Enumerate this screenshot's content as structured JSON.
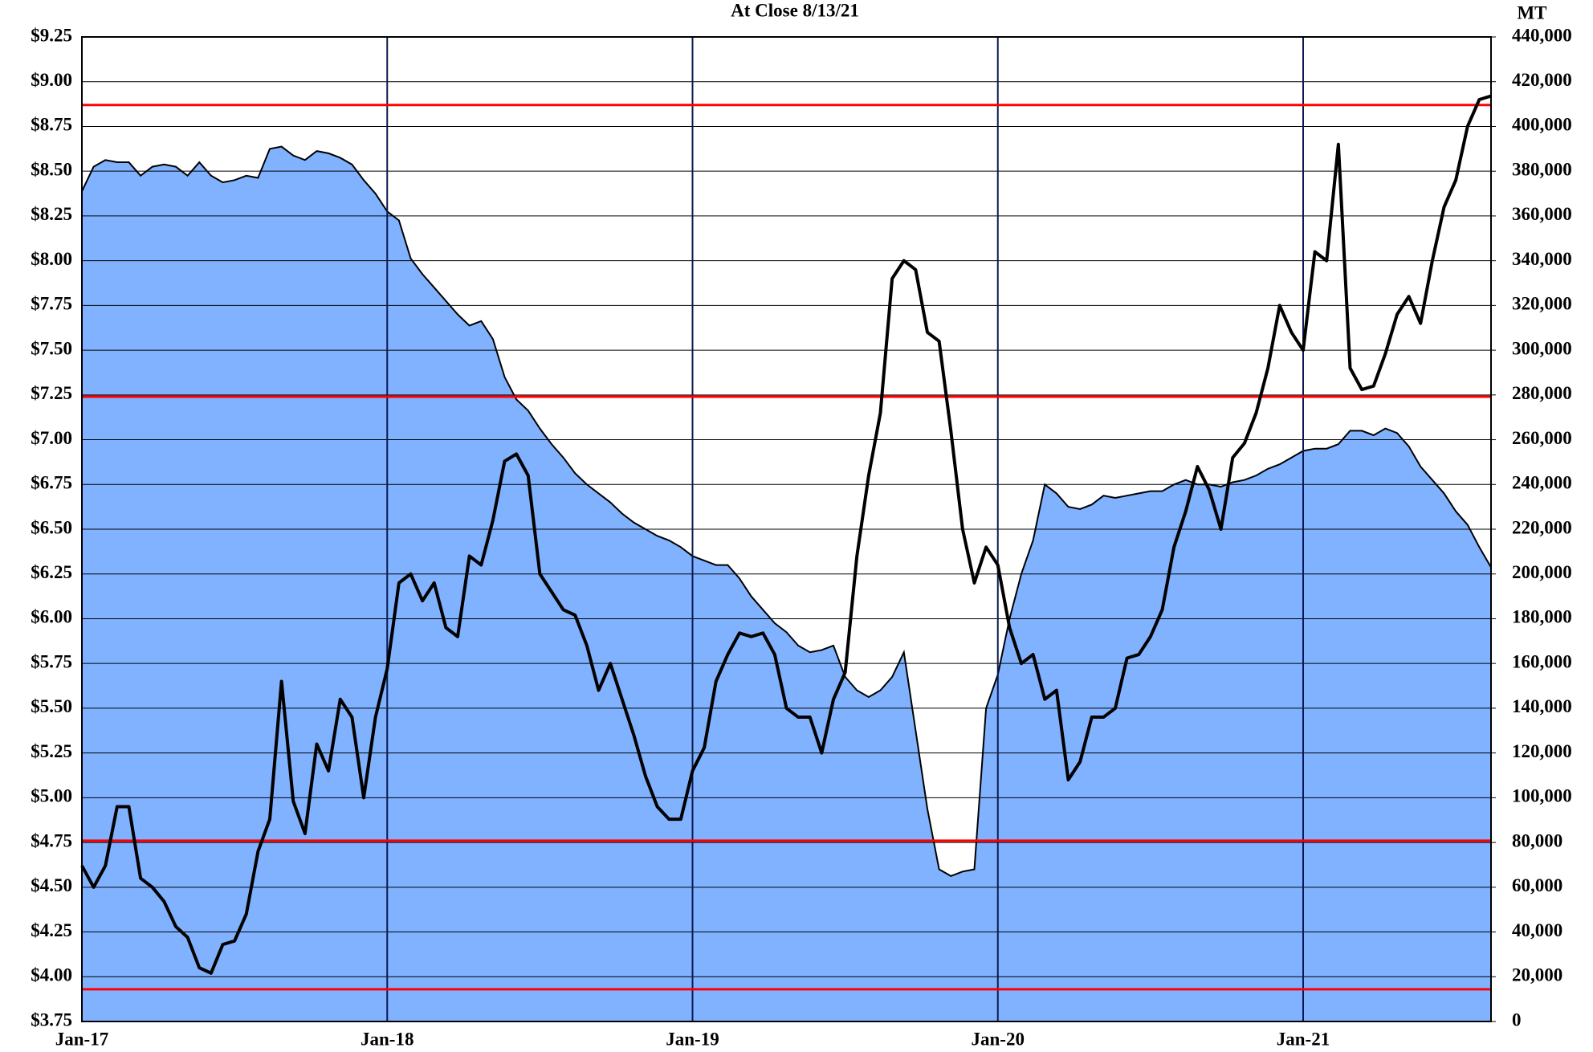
{
  "chart_data": {
    "type": "line",
    "title": "At Close 8/13/21",
    "y2_label": "MT",
    "categories": [
      "Jan-17",
      null,
      null,
      null,
      null,
      null,
      null,
      null,
      null,
      null,
      null,
      null,
      null,
      null,
      null,
      null,
      null,
      null,
      null,
      null,
      null,
      null,
      null,
      null,
      null,
      null,
      "Jan-18",
      null,
      null,
      null,
      null,
      null,
      null,
      null,
      null,
      null,
      null,
      null,
      null,
      null,
      null,
      null,
      null,
      null,
      null,
      null,
      null,
      null,
      null,
      null,
      null,
      null,
      "Jan-19",
      null,
      null,
      null,
      null,
      null,
      null,
      null,
      null,
      null,
      null,
      null,
      null,
      null,
      null,
      null,
      null,
      null,
      null,
      null,
      null,
      null,
      null,
      null,
      null,
      null,
      "Jan-20",
      null,
      null,
      null,
      null,
      null,
      null,
      null,
      null,
      null,
      null,
      null,
      null,
      null,
      null,
      null,
      null,
      null,
      null,
      null,
      null,
      null,
      null,
      null,
      null,
      null,
      "Jan-21",
      null,
      null,
      null,
      null,
      null,
      null,
      null,
      null,
      null,
      null,
      null,
      null,
      null,
      null,
      null,
      null
    ],
    "series": [
      {
        "type": "area",
        "axis": "y2",
        "color": "#80b2ff",
        "values": [
          371000,
          382000,
          385000,
          384000,
          384000,
          378000,
          382000,
          383000,
          382000,
          378000,
          384000,
          378000,
          375000,
          376000,
          378000,
          377000,
          390000,
          391000,
          387000,
          385000,
          389000,
          388000,
          386000,
          383000,
          376000,
          370000,
          362000,
          358000,
          341000,
          334000,
          328000,
          322000,
          316000,
          311000,
          313000,
          305000,
          288000,
          278000,
          273000,
          265000,
          258000,
          252000,
          245000,
          240000,
          236000,
          232000,
          227000,
          223000,
          220000,
          217000,
          215000,
          212000,
          208000,
          206000,
          204000,
          204000,
          198000,
          190000,
          184000,
          178000,
          174000,
          168000,
          165000,
          166000,
          168000,
          154000,
          148000,
          145000,
          148000,
          154000,
          165000,
          130000,
          95000,
          68000,
          65000,
          67000,
          68000,
          140000,
          155000,
          180000,
          200000,
          215000,
          240000,
          236000,
          230000,
          229000,
          231000,
          235000,
          234000,
          235000,
          236000,
          237000,
          237000,
          240000,
          242000,
          240000,
          240000,
          239000,
          241000,
          242000,
          244000,
          247000,
          249000,
          252000,
          255000,
          256000,
          256000,
          258000,
          264000,
          264000,
          262000,
          265000,
          263000,
          257000,
          248000,
          242000,
          236000,
          228000,
          222000,
          212000,
          203000
        ]
      },
      {
        "type": "line",
        "axis": "y",
        "color": "#000000",
        "values": [
          4.62,
          4.5,
          4.62,
          4.95,
          4.95,
          4.55,
          4.5,
          4.42,
          4.28,
          4.22,
          4.05,
          4.02,
          4.18,
          4.2,
          4.35,
          4.7,
          4.88,
          5.65,
          4.98,
          4.8,
          5.3,
          5.15,
          5.55,
          5.45,
          5.0,
          5.45,
          5.72,
          6.2,
          6.25,
          6.1,
          6.2,
          5.95,
          5.9,
          6.35,
          6.3,
          6.55,
          6.88,
          6.92,
          6.8,
          6.25,
          6.15,
          6.05,
          6.02,
          5.85,
          5.6,
          5.75,
          5.55,
          5.35,
          5.12,
          4.95,
          4.88,
          4.88,
          5.15,
          5.28,
          5.65,
          5.8,
          5.92,
          5.9,
          5.92,
          5.8,
          5.5,
          5.45,
          5.45,
          5.25,
          5.55,
          5.7,
          6.35,
          6.8,
          7.15,
          7.9,
          8.0,
          7.95,
          7.6,
          7.55,
          7.05,
          6.5,
          6.2,
          6.4,
          6.3,
          5.95,
          5.75,
          5.8,
          5.55,
          5.6,
          5.1,
          5.2,
          5.45,
          5.45,
          5.5,
          5.78,
          5.8,
          5.9,
          6.05,
          6.4,
          6.6,
          6.85,
          6.72,
          6.5,
          6.9,
          6.98,
          7.15,
          7.4,
          7.75,
          7.6,
          7.5,
          8.05,
          8.0,
          8.65,
          7.4,
          7.28,
          7.3,
          7.48,
          7.7,
          7.8,
          7.65,
          8.0,
          8.3,
          8.45,
          8.75,
          8.9,
          8.92
        ]
      }
    ],
    "reference_lines": [
      {
        "value": 8.87,
        "color": "#ff0000"
      },
      {
        "value": 7.24,
        "color": "#ff0000"
      },
      {
        "value": 4.76,
        "color": "#ff0000"
      },
      {
        "value": 3.93,
        "color": "#ff0000"
      }
    ],
    "ylim": [
      3.75,
      9.25
    ],
    "yticks": [
      {
        "value": 3.75,
        "label": "$3.75"
      },
      {
        "value": 4.0,
        "label": "$4.00"
      },
      {
        "value": 4.25,
        "label": "$4.25"
      },
      {
        "value": 4.5,
        "label": "$4.50"
      },
      {
        "value": 4.75,
        "label": "$4.75"
      },
      {
        "value": 5.0,
        "label": "$5.00"
      },
      {
        "value": 5.25,
        "label": "$5.25"
      },
      {
        "value": 5.5,
        "label": "$5.50"
      },
      {
        "value": 5.75,
        "label": "$5.75"
      },
      {
        "value": 6.0,
        "label": "$6.00"
      },
      {
        "value": 6.25,
        "label": "$6.25"
      },
      {
        "value": 6.5,
        "label": "$6.50"
      },
      {
        "value": 6.75,
        "label": "$6.75"
      },
      {
        "value": 7.0,
        "label": "$7.00"
      },
      {
        "value": 7.25,
        "label": "$7.25"
      },
      {
        "value": 7.5,
        "label": "$7.50"
      },
      {
        "value": 7.75,
        "label": "$7.75"
      },
      {
        "value": 8.0,
        "label": "$8.00"
      },
      {
        "value": 8.25,
        "label": "$8.25"
      },
      {
        "value": 8.5,
        "label": "$8.50"
      },
      {
        "value": 8.75,
        "label": "$8.75"
      },
      {
        "value": 9.0,
        "label": "$9.00"
      },
      {
        "value": 9.25,
        "label": "$9.25"
      }
    ],
    "y2lim": [
      0,
      440000
    ],
    "y2ticks": [
      0,
      {
        "value": 20000,
        "label": "20,000"
      },
      {
        "value": 40000,
        "label": "40,000"
      },
      {
        "value": 60000,
        "label": "60,000"
      },
      {
        "value": 80000,
        "label": "80,000"
      },
      {
        "value": 100000,
        "label": "100,000"
      },
      {
        "value": 120000,
        "label": "120,000"
      },
      {
        "value": 140000,
        "label": "140,000"
      },
      {
        "value": 160000,
        "label": "160,000"
      },
      {
        "value": 180000,
        "label": "180,000"
      },
      {
        "value": 200000,
        "label": "200,000"
      },
      {
        "value": 220000,
        "label": "220,000"
      },
      {
        "value": 240000,
        "label": "240,000"
      },
      {
        "value": 260000,
        "label": "260,000"
      },
      {
        "value": 280000,
        "label": "280,000"
      },
      {
        "value": 300000,
        "label": "300,000"
      },
      {
        "value": 320000,
        "label": "320,000"
      },
      {
        "value": 340000,
        "label": "340,000"
      },
      {
        "value": 360000,
        "label": "360,000"
      },
      {
        "value": 380000,
        "label": "380,000"
      },
      {
        "value": 400000,
        "label": "400,000"
      },
      {
        "value": 420000,
        "label": "420,000"
      },
      {
        "value": 440000,
        "label": "440,000"
      }
    ],
    "grid": true
  }
}
